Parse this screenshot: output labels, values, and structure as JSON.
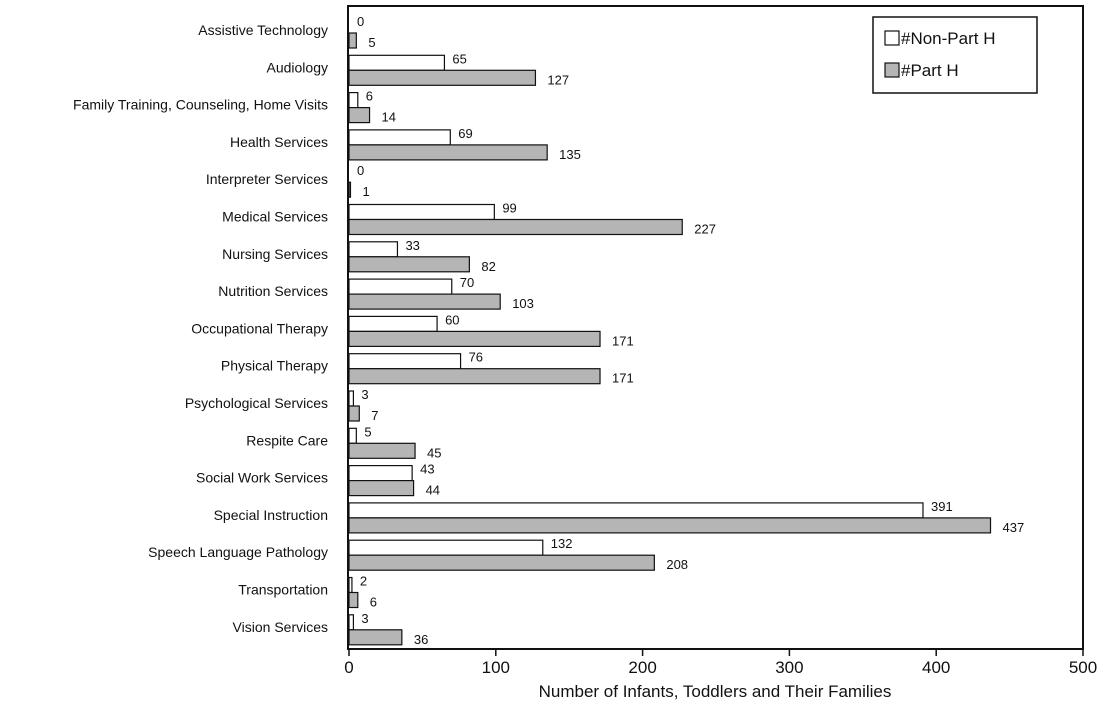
{
  "colors": {
    "non_part_h": "#ffffff",
    "part_h": "#b5b5b5",
    "outline": "#111111"
  },
  "chart_data": {
    "type": "bar",
    "orientation": "horizontal",
    "categories": [
      "Assistive Technology",
      "Audiology",
      "Family Training, Counseling, Home Visits",
      "Health Services",
      "Interpreter Services",
      "Medical Services",
      "Nursing Services",
      "Nutrition Services",
      "Occupational Therapy",
      "Physical Therapy",
      "Psychological Services",
      "Respite Care",
      "Social Work Services",
      "Special Instruction",
      "Speech Language Pathology",
      "Transportation",
      "Vision Services"
    ],
    "series": [
      {
        "name": "#Non-Part H",
        "values": [
          0,
          65,
          6,
          69,
          0,
          99,
          33,
          70,
          60,
          76,
          3,
          5,
          43,
          391,
          132,
          2,
          3
        ]
      },
      {
        "name": "#Part H",
        "values": [
          5,
          127,
          14,
          135,
          1,
          227,
          82,
          103,
          171,
          171,
          7,
          45,
          44,
          437,
          208,
          6,
          36
        ]
      }
    ],
    "xlabel": "Number of Infants, Toddlers and Their Families",
    "ylabel": "",
    "xlim": [
      0,
      500
    ],
    "xticks": [
      "0",
      "100",
      "200",
      "300",
      "400",
      "500"
    ],
    "legend_position": "top-right",
    "grid": false
  }
}
